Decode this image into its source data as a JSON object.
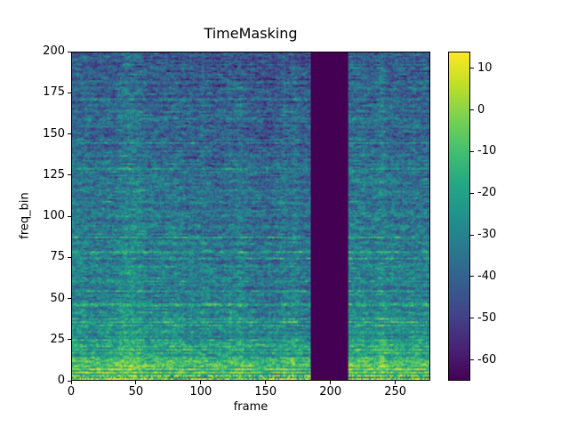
{
  "figure": {
    "background": "#ffffff"
  },
  "chart_data": {
    "type": "heatmap",
    "title": "TimeMasking",
    "xlabel": "frame",
    "ylabel": "freq_bin",
    "x_ticks": [
      0,
      50,
      100,
      150,
      200,
      250
    ],
    "y_ticks": [
      0,
      25,
      50,
      75,
      100,
      125,
      150,
      175,
      200
    ],
    "xlim": [
      0,
      277
    ],
    "ylim": [
      0,
      200
    ],
    "n_frames": 277,
    "n_bins": 201,
    "value_min": -65,
    "value_max": 14,
    "colorbar_ticks": [
      10,
      0,
      -10,
      -20,
      -30,
      -40,
      -50,
      -60
    ],
    "colormap": "viridis",
    "colormap_stops": [
      "#440154",
      "#482475",
      "#414487",
      "#355f8d",
      "#2a788e",
      "#21918c",
      "#22a884",
      "#44bf70",
      "#7ad151",
      "#bddf26",
      "#fde725"
    ],
    "mask": {
      "axis": "time",
      "frame_start": 185,
      "frame_end": 213,
      "masked_value": -65
    },
    "legend": "colorbar-right",
    "grid": false
  }
}
